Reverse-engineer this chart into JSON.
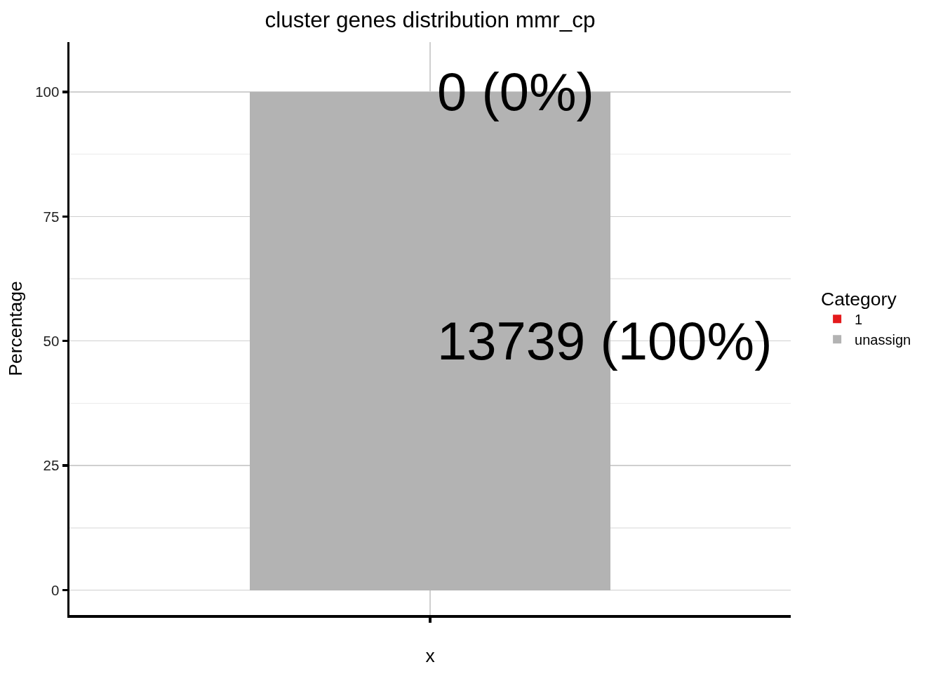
{
  "chart_data": {
    "type": "bar",
    "title": "cluster genes distribution mmr_cp",
    "xlabel": "x",
    "ylabel": "Percentage",
    "legend_title": "Category",
    "categories": [
      null
    ],
    "series": [
      {
        "name": "unassign",
        "color": "#b3b3b3",
        "values": [
          100
        ],
        "value_labels": [
          "13739 (100%)"
        ]
      },
      {
        "name": "1",
        "color": "#e41a1c",
        "values": [
          0
        ]
      }
    ],
    "annotations": [
      {
        "text": "0 (0%)",
        "y": 100
      }
    ],
    "stacked": true,
    "ylim": [
      -5,
      110
    ],
    "yticks": [
      0,
      25,
      50,
      75,
      100
    ],
    "grid": true,
    "legend": "right"
  }
}
